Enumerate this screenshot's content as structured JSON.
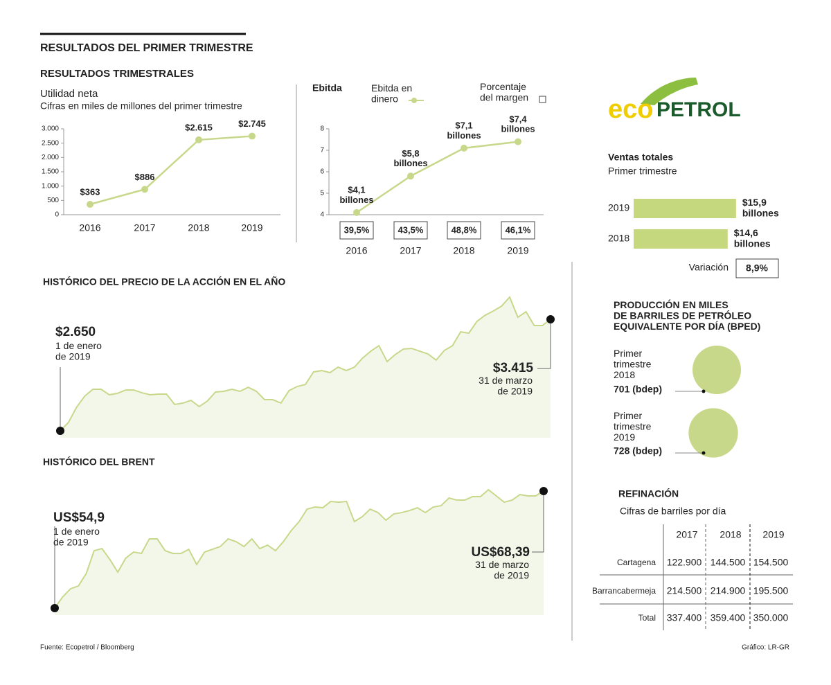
{
  "header": {
    "title": "RESULTADOS DEL PRIMER TRIMESTRE",
    "section": "RESULTADOS TRIMESTRALES"
  },
  "logo": [
    "eco",
    "PETROL"
  ],
  "chart_data": [
    {
      "type": "line",
      "title": "Utilidad neta",
      "subtitle": "Cifras en miles de millones del primer trimestre",
      "categories": [
        "2016",
        "2017",
        "2018",
        "2019"
      ],
      "values": [
        363,
        886,
        2615,
        2745
      ],
      "value_labels": [
        "$363",
        "$886",
        "$2.615",
        "$2.745"
      ],
      "color": "#c8d88a",
      "ylim": [
        0,
        3000
      ],
      "yticks": [
        {
          "value": 3000,
          "label": "3.000"
        },
        {
          "value": 2500,
          "label": "2.500"
        },
        {
          "value": 2000,
          "label": "2.000"
        },
        {
          "value": 1500,
          "label": "1.500"
        },
        {
          "value": 1000,
          "label": "1.000"
        },
        500,
        0
      ]
    },
    {
      "type": "line",
      "title": "Ebitda",
      "categories": [
        "2016",
        "2017",
        "2018",
        "2019"
      ],
      "series": [
        {
          "name": "Ebitda en\ndinero",
          "color": "#c8d88a",
          "values": [
            4.1,
            5.8,
            7.1,
            7.4
          ],
          "value_labels": [
            "$4,1\nbillones",
            "$5,8\nbillones",
            "$7,1\nbillones",
            "$7,4\nbillones"
          ]
        },
        {
          "name": "Porcentaje\ndel margen",
          "color": "#444444",
          "values": [
            39.5,
            43.5,
            48.8,
            46.1
          ],
          "value_labels": [
            "39,5%",
            "43,5%",
            "48,8%",
            "46,1%"
          ]
        }
      ],
      "ylim": [
        4,
        8
      ],
      "yticks": [
        4,
        5,
        6,
        7,
        8
      ]
    },
    {
      "type": "bar",
      "title": "Ventas totales",
      "subtitle": "Primer trimestre",
      "categories": [
        "2019",
        "2018"
      ],
      "values": [
        15.9,
        14.6
      ],
      "value_labels": [
        "$15,9\nbillones",
        "$14,6\nbillones"
      ],
      "color": "#c5d87e",
      "variation": {
        "label": "Variación",
        "value": 8.9,
        "value_label": "8,9%"
      }
    },
    {
      "type": "area",
      "title": "HISTÓRICO DEL PRECIO DE LA ACCIÓN EN EL AÑO",
      "values": [
        2650,
        2707,
        2812,
        2888,
        2935,
        2935,
        2897,
        2907,
        2930,
        2930,
        2911,
        2897,
        2902,
        2902,
        2831,
        2840,
        2859,
        2816,
        2854,
        2916,
        2921,
        2935,
        2921,
        2949,
        2921,
        2864,
        2864,
        2840,
        2926,
        2954,
        2968,
        3054,
        3063,
        3049,
        3087,
        3063,
        3087,
        3149,
        3196,
        3234,
        3125,
        3173,
        3211,
        3215,
        3196,
        3177,
        3135,
        3201,
        3234,
        3329,
        3320,
        3401,
        3443,
        3472,
        3505,
        3567,
        3429,
        3467,
        3372,
        3372,
        3415
      ],
      "color": "#c8d88a",
      "fill": "#f3f7ea",
      "start_label": "$2.650",
      "start_note": "1 de enero\nde 2019",
      "end_label": "$3.415",
      "end_note": "31 de marzo\nde 2019"
    },
    {
      "type": "area",
      "title": "HISTÓRICO DEL BRENT",
      "values": [
        54.9,
        56.18,
        57.13,
        57.45,
        58.89,
        61.52,
        61.76,
        60.49,
        59.05,
        60.65,
        61.36,
        61.2,
        62.88,
        62.88,
        61.52,
        61.2,
        61.2,
        61.68,
        59.93,
        61.36,
        61.68,
        62.0,
        62.88,
        62.56,
        62.0,
        62.88,
        61.76,
        62.16,
        61.52,
        62.56,
        63.84,
        64.88,
        66.31,
        66.55,
        66.47,
        67.19,
        67.11,
        67.19,
        64.88,
        65.43,
        66.31,
        65.91,
        65.03,
        65.75,
        65.91,
        66.15,
        66.47,
        65.91,
        66.55,
        66.71,
        67.59,
        67.35,
        67.35,
        67.75,
        67.75,
        68.55,
        67.83,
        67.11,
        67.35,
        67.99,
        67.83,
        67.83,
        68.39
      ],
      "color": "#c8d88a",
      "fill": "#f3f7ea",
      "start_label": "US$54,9",
      "start_note": "1 de enero\nde 2019",
      "end_label": "US$68,39",
      "end_note": "31 de marzo\nde 2019"
    },
    {
      "type": "bubble",
      "title": "PRODUCCIÓN EN MILES\nDE BARRILES DE PETRÓLEO\nEQUIVALENTE POR DÍA (BPED)",
      "categories": [
        "Primer\ntrimestre\n2018",
        "Primer\ntrimestre\n2019"
      ],
      "values": [
        701,
        728
      ],
      "value_labels": [
        "701 (bdep)",
        "728 (bdep)"
      ],
      "color": "#c8d88a"
    }
  ],
  "table": {
    "title": "REFINACIÓN",
    "subtitle": "Cifras de barriles por día",
    "columns": [
      "2017",
      "2018",
      "2019"
    ],
    "rows": [
      {
        "label": "Cartagena",
        "cells": [
          "122.900",
          "144.500",
          "154.500"
        ]
      },
      {
        "label": "Barrancabermeja",
        "cells": [
          "214.500",
          "214.900",
          "195.500"
        ]
      },
      {
        "label": "Total",
        "cells": [
          "337.400",
          "359.400",
          "350.000"
        ]
      }
    ]
  },
  "footer": {
    "source": "Fuente: Ecopetrol / Bloomberg",
    "credit": "Gráfico: LR-GR"
  }
}
